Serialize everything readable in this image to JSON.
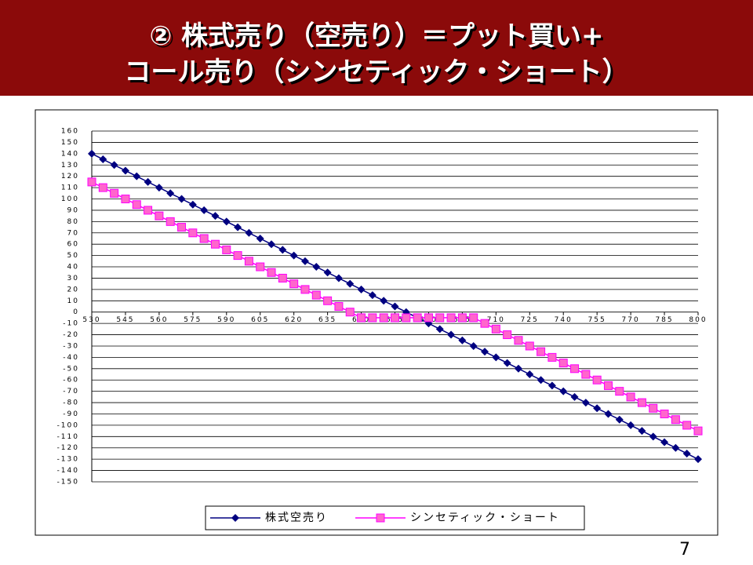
{
  "chart_data": {
    "type": "line",
    "title": "② 株式売り（空売り）＝プット買い+",
    "subtitle": "コール売り（シンセティック・ショート）",
    "page_number": "7",
    "x": [
      530,
      535,
      540,
      545,
      550,
      555,
      560,
      565,
      570,
      575,
      580,
      585,
      590,
      595,
      600,
      605,
      610,
      615,
      620,
      625,
      630,
      635,
      640,
      645,
      650,
      655,
      660,
      665,
      670,
      675,
      680,
      685,
      690,
      695,
      700,
      705,
      710,
      715,
      720,
      725,
      730,
      735,
      740,
      745,
      750,
      755,
      760,
      765,
      770,
      775,
      780,
      785,
      790,
      795,
      800
    ],
    "xlim": [
      530,
      800
    ],
    "xticks": [
      530,
      545,
      560,
      575,
      590,
      605,
      620,
      635,
      650,
      665,
      680,
      695,
      710,
      725,
      740,
      755,
      770,
      785,
      800
    ],
    "ylim": [
      -150,
      160
    ],
    "yticks": [
      -150,
      -140,
      -130,
      -120,
      -110,
      -100,
      -90,
      -80,
      -70,
      -60,
      -50,
      -40,
      -30,
      -20,
      -10,
      0,
      10,
      20,
      30,
      40,
      50,
      60,
      70,
      80,
      90,
      100,
      110,
      120,
      130,
      140,
      150,
      160
    ],
    "grid": true,
    "legend": "bottom",
    "series": [
      {
        "name": "株式空売り",
        "color": "#000080",
        "marker": "diamond",
        "values": [
          140,
          135,
          130,
          125,
          120,
          115,
          110,
          105,
          100,
          95,
          90,
          85,
          80,
          75,
          70,
          65,
          60,
          55,
          50,
          45,
          40,
          35,
          30,
          25,
          20,
          15,
          10,
          5,
          0,
          -5,
          -10,
          -15,
          -20,
          -25,
          -30,
          -35,
          -40,
          -45,
          -50,
          -55,
          -60,
          -65,
          -70,
          -75,
          -80,
          -85,
          -90,
          -95,
          -100,
          -105,
          -110,
          -115,
          -120,
          -125,
          -130
        ]
      },
      {
        "name": "シンセティック・ショート",
        "color": "#ff00ff",
        "marker": "square",
        "values": [
          115,
          110,
          105,
          100,
          95,
          90,
          85,
          80,
          75,
          70,
          65,
          60,
          55,
          50,
          45,
          40,
          35,
          30,
          25,
          20,
          15,
          10,
          5,
          0,
          -5,
          -5,
          -5,
          -5,
          -5,
          -5,
          -5,
          -5,
          -5,
          -5,
          -5,
          -10,
          -15,
          -20,
          -25,
          -30,
          -35,
          -40,
          -45,
          -50,
          -55,
          -60,
          -65,
          -70,
          -75,
          -80,
          -85,
          -90,
          -95,
          -100,
          -105
        ]
      }
    ]
  }
}
